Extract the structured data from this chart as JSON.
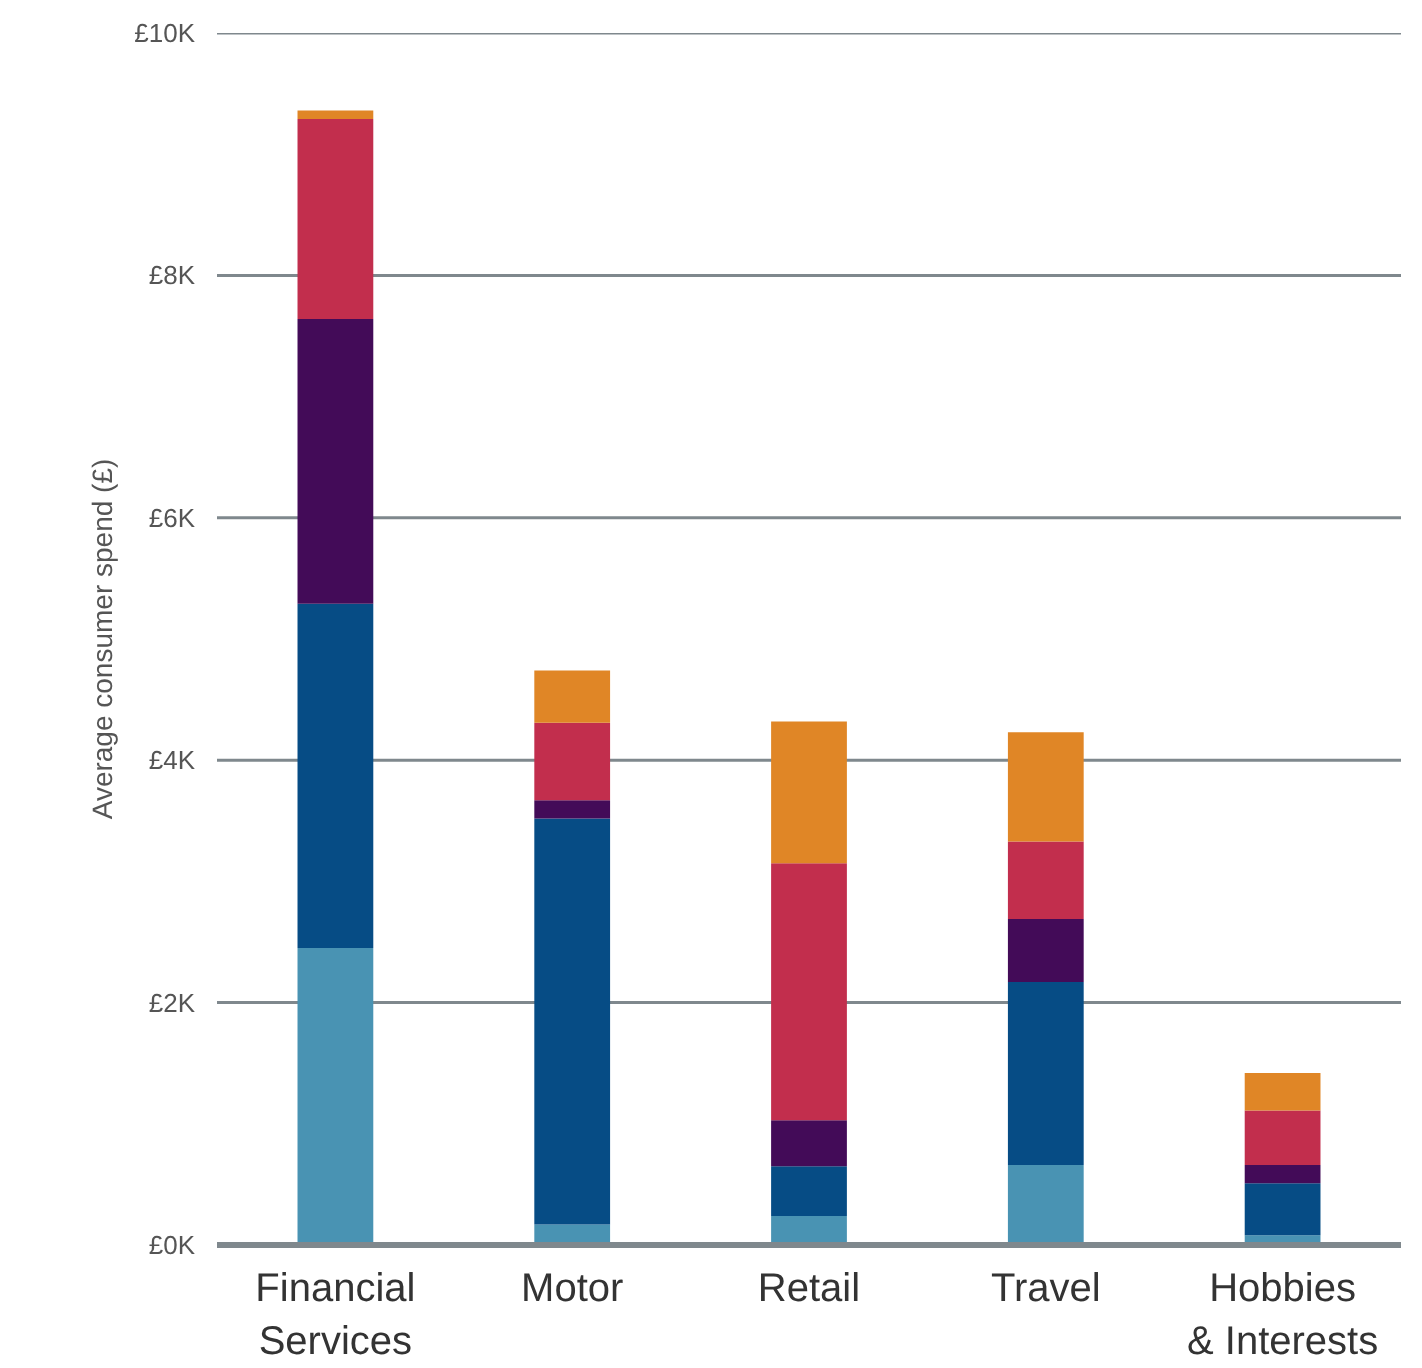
{
  "chart_data": {
    "type": "bar",
    "stacked": true,
    "ylabel": "Average consumer spend (£)",
    "categories": [
      "Financial\nServices",
      "Motor",
      "Retail",
      "Travel",
      "Hobbies\n& Interests"
    ],
    "series": [
      {
        "color": "#4993b3",
        "values": [
          2450,
          170,
          240,
          660,
          80
        ]
      },
      {
        "color": "#064c85",
        "values": [
          2840,
          3350,
          410,
          1510,
          430
        ]
      },
      {
        "color": "#430b58",
        "values": [
          2350,
          150,
          380,
          520,
          150
        ]
      },
      {
        "color": "#c22e4d",
        "values": [
          1650,
          640,
          2120,
          640,
          450
        ]
      },
      {
        "color": "#e08626",
        "values": [
          70,
          430,
          1170,
          900,
          310
        ]
      }
    ],
    "ylim": [
      0,
      10000
    ],
    "yticks": [
      {
        "value": 0,
        "label": "£0K"
      },
      {
        "value": 2000,
        "label": "£2K"
      },
      {
        "value": 4000,
        "label": "£4K"
      },
      {
        "value": 6000,
        "label": "£6K"
      },
      {
        "value": 8000,
        "label": "£8K"
      },
      {
        "value": 10000,
        "label": "£10K"
      }
    ],
    "grid": "y"
  }
}
